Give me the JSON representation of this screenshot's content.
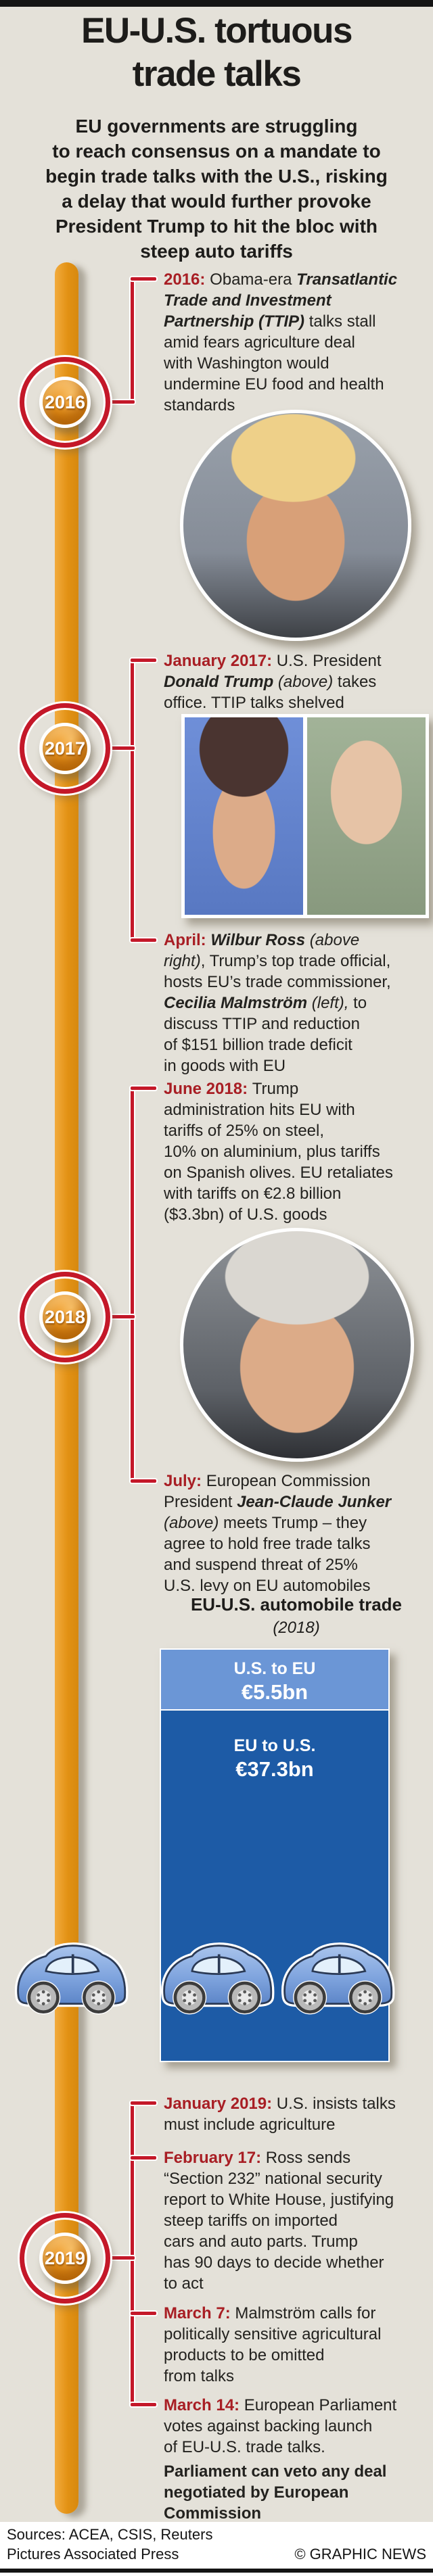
{
  "page": {
    "title_line1": "EU-U.S. tortuous",
    "title_line2": "trade talks",
    "intro_lines": [
      "EU governments are struggling",
      "to reach consensus on a mandate to",
      "begin trade talks with the U.S., risking",
      "a delay that would further provoke",
      "President Trump to hit the bloc with",
      "steep auto tariffs"
    ]
  },
  "timeline": {
    "years": [
      "2016",
      "2017",
      "2018",
      "2019"
    ],
    "accent_orange": "#E29114",
    "accent_red": "#C41829"
  },
  "events": {
    "e2016": {
      "runs": [
        [
          "d",
          "2016: "
        ],
        [
          "r",
          "Obama-era "
        ],
        [
          "bi",
          "Transatlantic\nTrade and Investment\nPartnership (TTIP)"
        ],
        [
          "r",
          " talks stall\namid fears agriculture deal\nwith Washington would\nundermine EU food and health\nstandards"
        ]
      ]
    },
    "jan2017": {
      "runs": [
        [
          "d",
          "January 2017: "
        ],
        [
          "r",
          "U.S. President"
        ],
        [
          "bi",
          "\nDonald Trump "
        ],
        [
          "i",
          "(above)"
        ],
        [
          "r",
          " takes\noffice. TTIP talks shelved"
        ]
      ]
    },
    "april2017": {
      "runs": [
        [
          "d",
          "April: "
        ],
        [
          "bi",
          "Wilbur Ross "
        ],
        [
          "i",
          "(above\nright)"
        ],
        [
          "r",
          ", Trump’s top trade official,\nhosts EU’s trade commissioner,"
        ],
        [
          "bi",
          "\nCecilia Malmström "
        ],
        [
          "i",
          "(left),"
        ],
        [
          "r",
          " to\ndiscuss TTIP and reduction\nof $151 billion trade deficit\nin goods with EU"
        ]
      ]
    },
    "june2018": {
      "runs": [
        [
          "d",
          "June 2018: "
        ],
        [
          "r",
          "Trump\nadministration hits EU with\ntariffs of 25% on steel,\n10% on aluminium, plus tariffs\non Spanish olives. EU retaliates\nwith tariffs on €2.8 billion\n($3.3bn) of U.S. goods"
        ]
      ]
    },
    "july2018": {
      "runs": [
        [
          "d",
          "July: "
        ],
        [
          "r",
          "European Commission\nPresident "
        ],
        [
          "bi",
          "Jean-Claude Junker"
        ],
        [
          "i",
          "\n(above)"
        ],
        [
          "r",
          " meets Trump – they\nagree to hold free trade talks\nand suspend threat of 25%\nU.S. levy on EU automobiles"
        ]
      ]
    },
    "jan2019": {
      "runs": [
        [
          "d",
          "January 2019: "
        ],
        [
          "r",
          "U.S. insists talks\nmust include agriculture"
        ]
      ]
    },
    "feb2019": {
      "runs": [
        [
          "d",
          "February 17: "
        ],
        [
          "r",
          "Ross sends\n“Section 232” national security\nreport to White House, justifying\nsteep tariffs on imported\ncars and auto parts. Trump\nhas 90 days to decide whether\nto act"
        ]
      ]
    },
    "mar7_2019": {
      "runs": [
        [
          "d",
          "March 7: "
        ],
        [
          "r",
          "Malmström calls for\npolitically sensitive agricultural\nproducts to be omitted\nfrom talks"
        ]
      ]
    },
    "mar14_2019": {
      "runs": [
        [
          "d",
          "March 14: "
        ],
        [
          "r",
          "European Parliament\nvotes against backing launch\nof EU-U.S. trade talks."
        ]
      ]
    },
    "parliament_note": {
      "runs": [
        [
          "b",
          "Parliament can veto any deal\nnegotiated by European\nCommission"
        ]
      ]
    }
  },
  "photos": {
    "trump_caption": "Donald Trump",
    "malmstrom_caption": "Cecilia Malmström",
    "ross_caption": "Wilbur Ross",
    "juncker_caption": "Jean-Claude Junker"
  },
  "chart_data": {
    "type": "bar",
    "title": "EU-U.S. automobile trade",
    "subtitle": "(2018)",
    "categories": [
      "U.S. to EU",
      "EU to U.S."
    ],
    "values": [
      5.5,
      37.3
    ],
    "unit": "€ billion",
    "value_labels": [
      "€5.5bn",
      "€37.3bn"
    ],
    "colors": [
      "#6B96D6",
      "#1D5BA6"
    ],
    "car_icon_count": 3
  },
  "footer": {
    "sources": "Sources: ACEA, CSIS, Reuters",
    "pictures": "Pictures Associated Press",
    "credit": "© GRAPHIC NEWS"
  }
}
